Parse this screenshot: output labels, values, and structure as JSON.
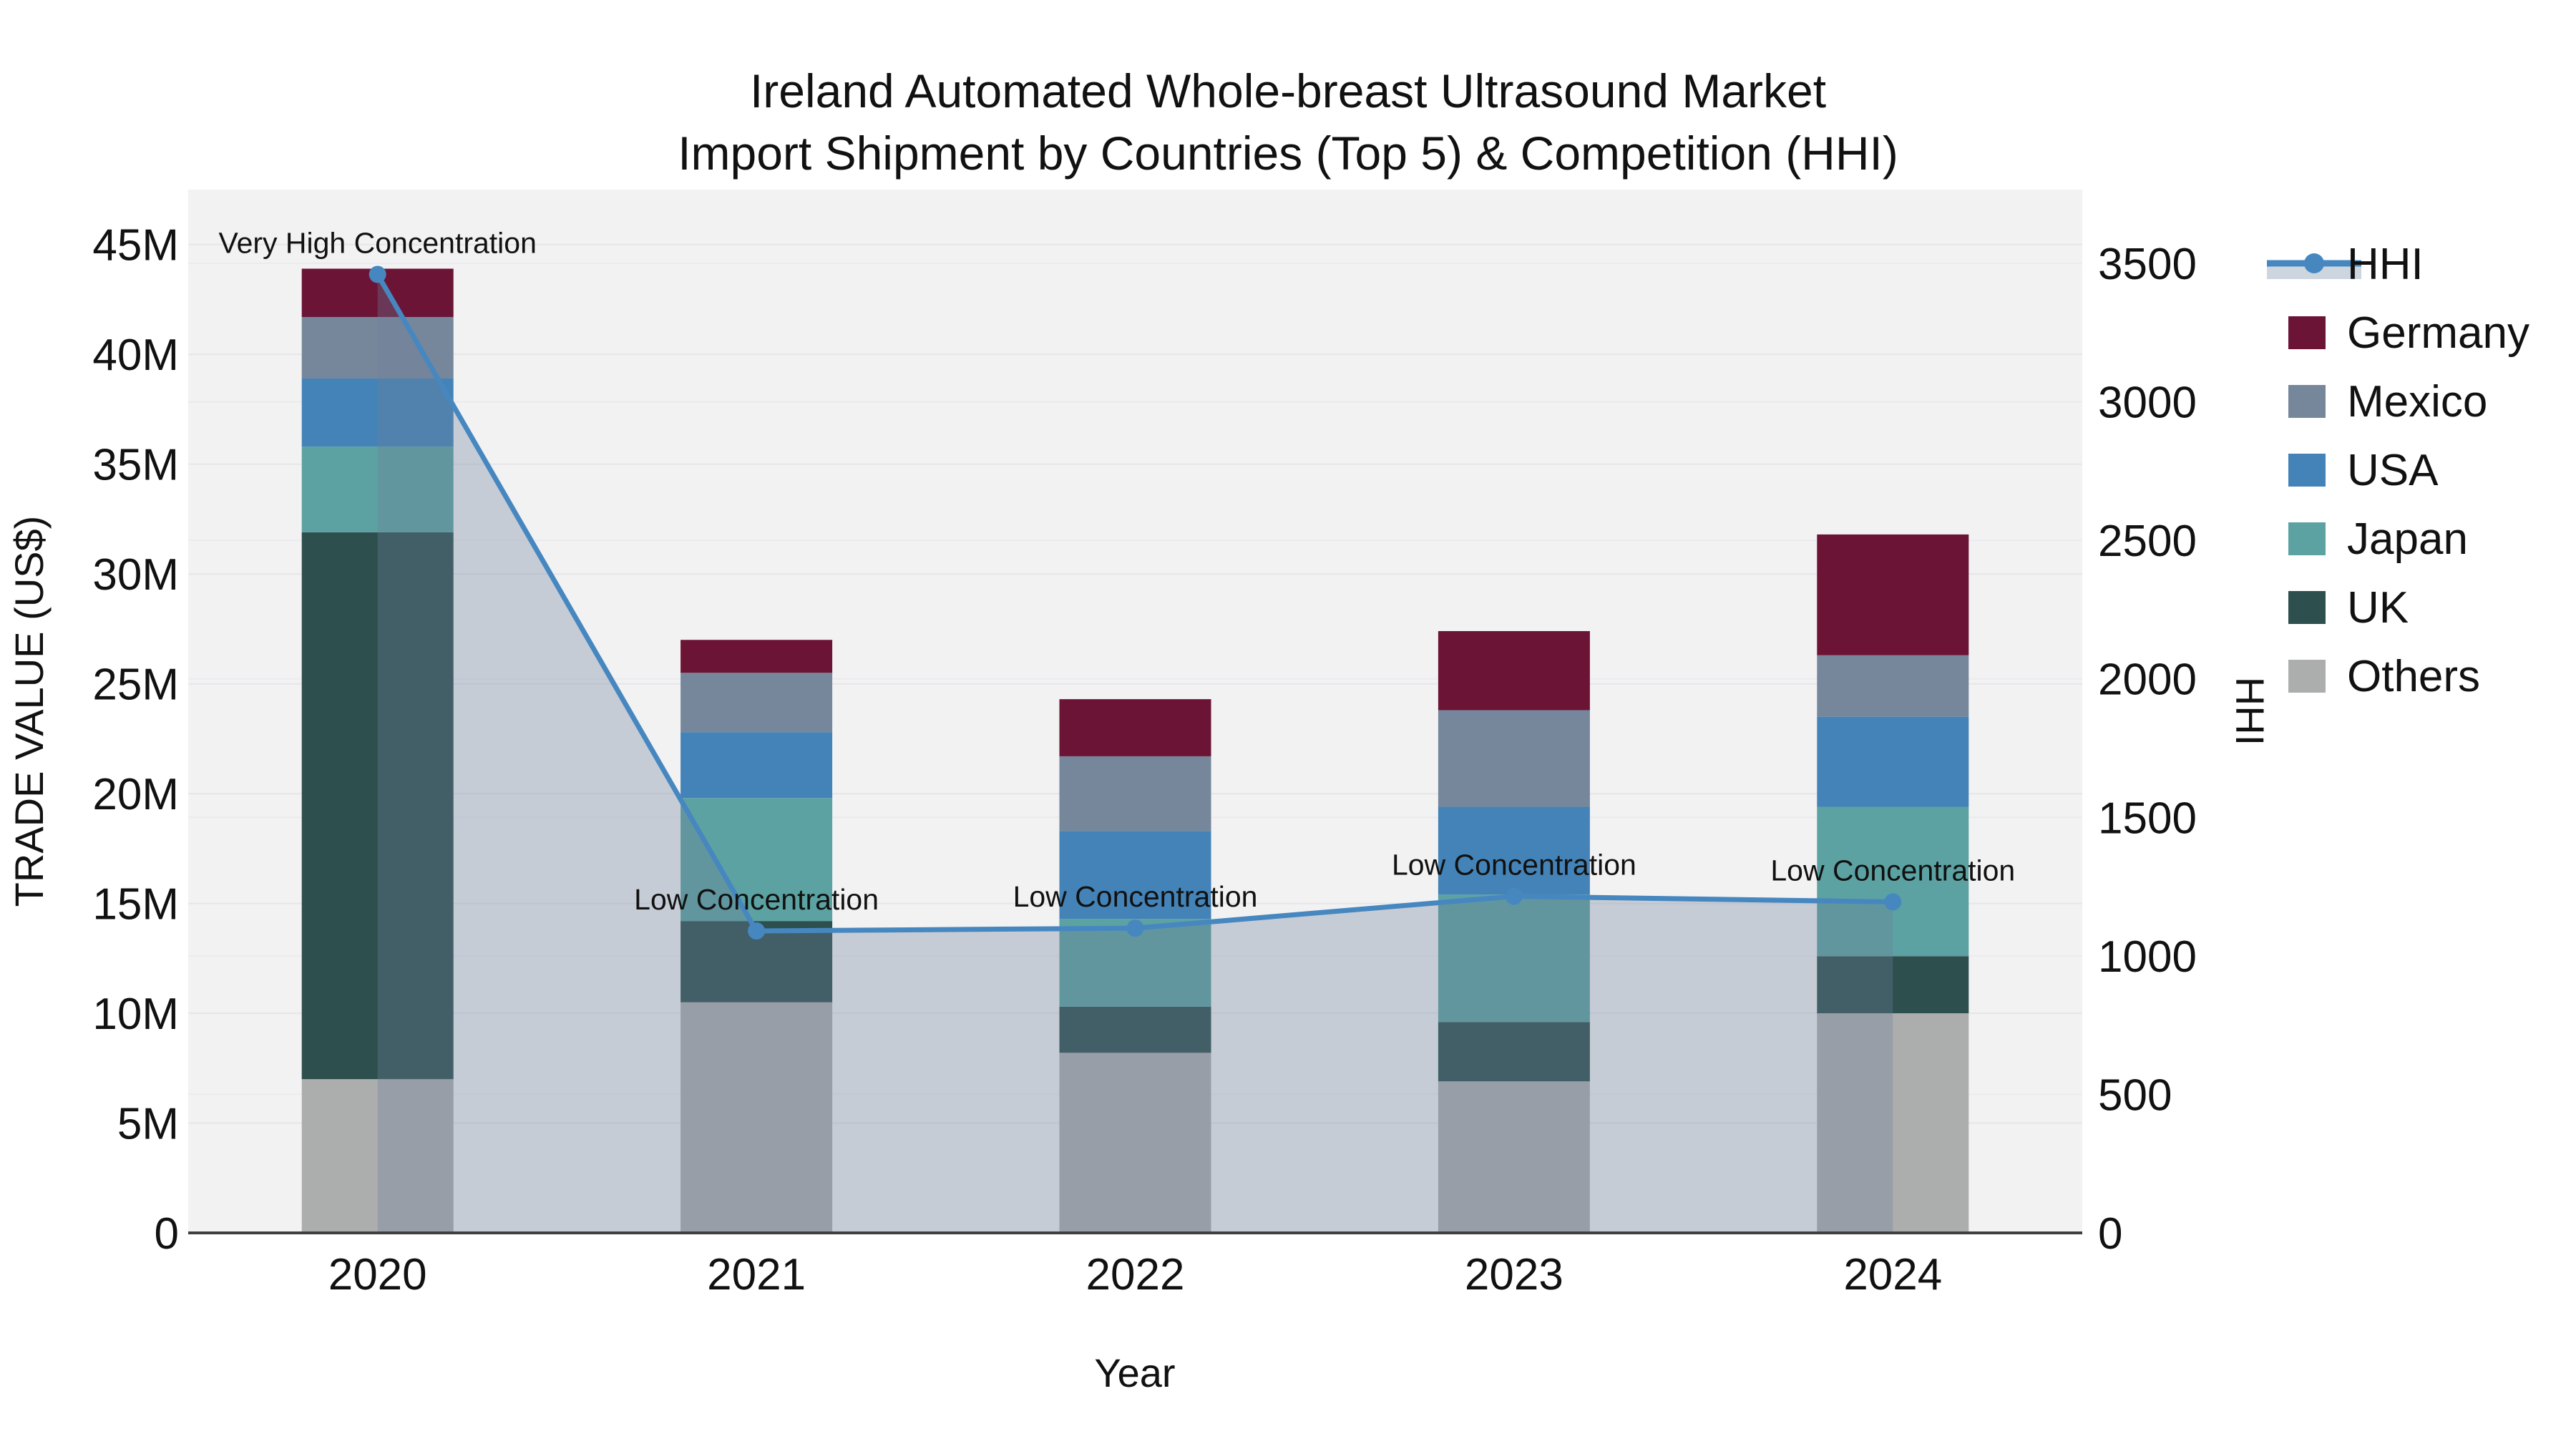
{
  "chart_data": {
    "type": "bar+line",
    "title_line1": "Ireland Automated Whole-breast Ultrasound Market",
    "title_line2": "Import Shipment by Countries (Top 5) & Competition (HHI)",
    "xlabel": "Year",
    "ylabel_left": "TRADE VALUE (US$)",
    "ylabel_right": "HHI",
    "categories": [
      "2020",
      "2021",
      "2022",
      "2023",
      "2024"
    ],
    "stack_order_note": "series listed bottom-to-top of the stacked bars, values in millions US$",
    "series": [
      {
        "name": "Others",
        "values": [
          7.0,
          10.5,
          8.2,
          6.9,
          10.0
        ]
      },
      {
        "name": "UK",
        "values": [
          24.9,
          3.7,
          2.1,
          2.7,
          2.6
        ]
      },
      {
        "name": "Japan",
        "values": [
          3.9,
          5.6,
          4.0,
          5.8,
          6.8
        ]
      },
      {
        "name": "USA",
        "values": [
          3.1,
          3.0,
          4.0,
          4.0,
          4.1
        ]
      },
      {
        "name": "Mexico",
        "values": [
          2.8,
          2.7,
          3.4,
          4.4,
          2.8
        ]
      },
      {
        "name": "Germany",
        "values": [
          2.2,
          1.5,
          2.6,
          3.6,
          5.5
        ]
      }
    ],
    "bar_totals": [
      44.0,
      27.0,
      24.3,
      27.4,
      31.8
    ],
    "hhi_line": {
      "name": "HHI",
      "values": [
        3460,
        1090,
        1100,
        1215,
        1195
      ]
    },
    "annotations": [
      {
        "x_index": 0,
        "text": "Very High Concentration"
      },
      {
        "x_index": 1,
        "text": "Low Concentration"
      },
      {
        "x_index": 2,
        "text": "Low Concentration"
      },
      {
        "x_index": 3,
        "text": "Low Concentration"
      },
      {
        "x_index": 4,
        "text": "Low Concentration"
      }
    ],
    "left_axis": {
      "tick_labels": [
        "0",
        "5M",
        "10M",
        "15M",
        "20M",
        "25M",
        "30M",
        "35M",
        "40M",
        "45M"
      ],
      "tick_values": [
        0,
        5,
        10,
        15,
        20,
        25,
        30,
        35,
        40,
        45
      ],
      "range_max": 47.5
    },
    "right_axis": {
      "tick_labels": [
        "0",
        "500",
        "1000",
        "1500",
        "2000",
        "2500",
        "3000",
        "3500"
      ],
      "tick_values": [
        0,
        500,
        1000,
        1500,
        2000,
        2500,
        3000,
        3500
      ],
      "range_max": 3766
    },
    "legend_order": [
      "HHI",
      "Germany",
      "Mexico",
      "USA",
      "Japan",
      "UK",
      "Others"
    ],
    "colors": {
      "Germany": "#6B1436",
      "Mexico": "#76879B",
      "USA": "#4483B7",
      "Japan": "#5CA2A2",
      "UK": "#2D4F4E",
      "Others": "#ACAEAD",
      "hhi_line": "#4787C0",
      "hhi_area": "rgba(110,126,156,0.33)",
      "hhi_area_swatch": "#CDD5DE",
      "plot_bg": "#F2F2F3",
      "grid_left": "#E6E6EA",
      "grid_right": "#EBEBEF",
      "axis_line": "#3F3F3F",
      "text": "#111111"
    },
    "grid": true,
    "legend_position": "right"
  }
}
